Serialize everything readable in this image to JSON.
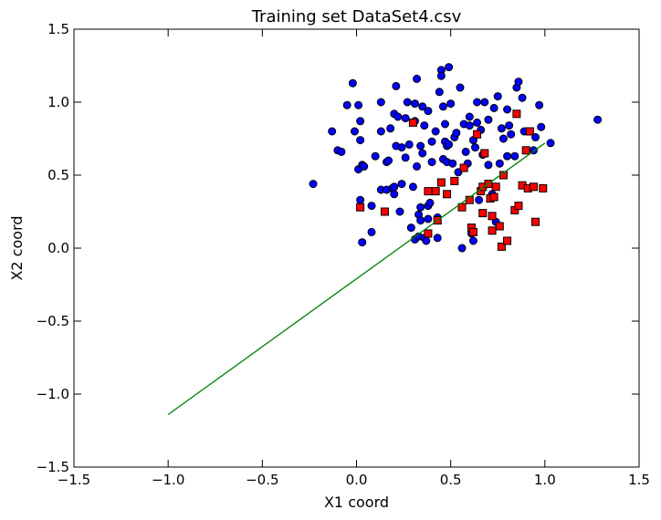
{
  "chart_data": {
    "type": "scatter",
    "title": "Training set DataSet4.csv",
    "xlabel": "X1 coord",
    "ylabel": "X2 coord",
    "xlim": [
      -1.5,
      1.5
    ],
    "ylim": [
      -1.5,
      1.5
    ],
    "xticks": [
      -1.5,
      -1.0,
      -0.5,
      0.0,
      0.5,
      1.0,
      1.5
    ],
    "yticks": [
      -1.5,
      -1.0,
      -0.5,
      0.0,
      0.5,
      1.0,
      1.5
    ],
    "xtick_labels": [
      "−1.5",
      "−1.0",
      "−0.5",
      "0.0",
      "0.5",
      "1.0",
      "1.5"
    ],
    "ytick_labels": [
      "−1.5",
      "−1.0",
      "−0.5",
      "0.0",
      "0.5",
      "1.0",
      "1.5"
    ],
    "grid": false,
    "series": [
      {
        "marker": "circle",
        "color": "#0000ff",
        "points": [
          [
            -0.23,
            0.44
          ],
          [
            -0.13,
            0.8
          ],
          [
            -0.1,
            0.67
          ],
          [
            -0.08,
            0.66
          ],
          [
            -0.05,
            0.98
          ],
          [
            -0.02,
            1.13
          ],
          [
            -0.01,
            0.8
          ],
          [
            0.01,
            0.98
          ],
          [
            0.02,
            0.87
          ],
          [
            0.02,
            0.74
          ],
          [
            0.01,
            0.54
          ],
          [
            0.03,
            0.57
          ],
          [
            0.04,
            0.56
          ],
          [
            0.02,
            0.33
          ],
          [
            0.03,
            0.04
          ],
          [
            0.08,
            0.11
          ],
          [
            0.08,
            0.29
          ],
          [
            0.1,
            0.63
          ],
          [
            0.13,
            0.4
          ],
          [
            0.13,
            0.8
          ],
          [
            0.13,
            1.0
          ],
          [
            0.16,
            0.4
          ],
          [
            0.16,
            0.59
          ],
          [
            0.17,
            0.6
          ],
          [
            0.18,
            0.82
          ],
          [
            0.19,
            0.41
          ],
          [
            0.2,
            0.37
          ],
          [
            0.2,
            0.42
          ],
          [
            0.2,
            0.92
          ],
          [
            0.21,
            0.7
          ],
          [
            0.22,
            0.9
          ],
          [
            0.21,
            1.11
          ],
          [
            0.23,
            0.25
          ],
          [
            0.24,
            0.44
          ],
          [
            0.24,
            0.69
          ],
          [
            0.26,
            0.89
          ],
          [
            0.26,
            0.62
          ],
          [
            0.27,
            1.0
          ],
          [
            0.28,
            0.71
          ],
          [
            0.29,
            0.14
          ],
          [
            0.3,
            0.42
          ],
          [
            0.31,
            0.06
          ],
          [
            0.31,
            0.87
          ],
          [
            0.32,
            1.16
          ],
          [
            0.31,
            0.99
          ],
          [
            0.32,
            0.56
          ],
          [
            0.33,
            0.23
          ],
          [
            0.33,
            0.08
          ],
          [
            0.34,
            0.19
          ],
          [
            0.34,
            0.28
          ],
          [
            0.34,
            0.7
          ],
          [
            0.35,
            0.97
          ],
          [
            0.35,
            0.65
          ],
          [
            0.36,
            0.84
          ],
          [
            0.36,
            0.07
          ],
          [
            0.37,
            0.05
          ],
          [
            0.38,
            0.94
          ],
          [
            0.38,
            0.2
          ],
          [
            0.38,
            0.29
          ],
          [
            0.39,
            0.31
          ],
          [
            0.4,
            0.73
          ],
          [
            0.4,
            0.59
          ],
          [
            0.42,
            0.8
          ],
          [
            0.43,
            0.21
          ],
          [
            0.43,
            0.07
          ],
          [
            0.44,
            1.07
          ],
          [
            0.45,
            1.22
          ],
          [
            0.45,
            1.18
          ],
          [
            0.46,
            0.61
          ],
          [
            0.46,
            0.97
          ],
          [
            0.47,
            0.73
          ],
          [
            0.47,
            0.85
          ],
          [
            0.48,
            0.59
          ],
          [
            0.48,
            0.7
          ],
          [
            0.49,
            1.24
          ],
          [
            0.49,
            0.71
          ],
          [
            0.5,
            0.99
          ],
          [
            0.51,
            0.58
          ],
          [
            0.52,
            0.76
          ],
          [
            0.53,
            0.79
          ],
          [
            0.54,
            0.52
          ],
          [
            0.55,
            1.1
          ],
          [
            0.56,
            0.0
          ],
          [
            0.57,
            0.85
          ],
          [
            0.58,
            0.66
          ],
          [
            0.59,
            0.58
          ],
          [
            0.6,
            0.9
          ],
          [
            0.6,
            0.84
          ],
          [
            0.61,
            0.1
          ],
          [
            0.62,
            0.05
          ],
          [
            0.62,
            0.74
          ],
          [
            0.63,
            0.69
          ],
          [
            0.64,
            0.86
          ],
          [
            0.64,
            1.0
          ],
          [
            0.65,
            0.33
          ],
          [
            0.66,
            0.81
          ],
          [
            0.67,
            0.64
          ],
          [
            0.68,
            1.0
          ],
          [
            0.7,
            0.88
          ],
          [
            0.7,
            0.57
          ],
          [
            0.72,
            0.37
          ],
          [
            0.73,
            0.96
          ],
          [
            0.74,
            0.18
          ],
          [
            0.75,
            1.04
          ],
          [
            0.76,
            0.58
          ],
          [
            0.77,
            0.82
          ],
          [
            0.78,
            0.75
          ],
          [
            0.8,
            0.63
          ],
          [
            0.8,
            0.95
          ],
          [
            0.81,
            0.84
          ],
          [
            0.82,
            0.78
          ],
          [
            0.84,
            0.63
          ],
          [
            0.85,
            1.1
          ],
          [
            0.86,
            1.14
          ],
          [
            0.88,
            1.03
          ],
          [
            0.89,
            0.8
          ],
          [
            0.92,
            0.8
          ],
          [
            0.94,
            0.67
          ],
          [
            0.95,
            0.76
          ],
          [
            0.97,
            0.98
          ],
          [
            0.98,
            0.83
          ],
          [
            1.03,
            0.72
          ],
          [
            1.28,
            0.88
          ]
        ]
      },
      {
        "marker": "square",
        "color": "#ff0000",
        "points": [
          [
            0.02,
            0.28
          ],
          [
            0.15,
            0.25
          ],
          [
            0.3,
            0.86
          ],
          [
            0.38,
            0.1
          ],
          [
            0.38,
            0.39
          ],
          [
            0.42,
            0.39
          ],
          [
            0.43,
            0.19
          ],
          [
            0.45,
            0.45
          ],
          [
            0.48,
            0.37
          ],
          [
            0.52,
            0.46
          ],
          [
            0.56,
            0.28
          ],
          [
            0.57,
            0.55
          ],
          [
            0.6,
            0.33
          ],
          [
            0.61,
            0.14
          ],
          [
            0.62,
            0.11
          ],
          [
            0.64,
            0.78
          ],
          [
            0.66,
            0.39
          ],
          [
            0.67,
            0.42
          ],
          [
            0.67,
            0.24
          ],
          [
            0.68,
            0.65
          ],
          [
            0.7,
            0.44
          ],
          [
            0.71,
            0.34
          ],
          [
            0.72,
            0.22
          ],
          [
            0.72,
            0.12
          ],
          [
            0.73,
            0.35
          ],
          [
            0.74,
            0.42
          ],
          [
            0.76,
            0.15
          ],
          [
            0.77,
            0.01
          ],
          [
            0.78,
            0.5
          ],
          [
            0.8,
            0.05
          ],
          [
            0.84,
            0.26
          ],
          [
            0.85,
            0.92
          ],
          [
            0.86,
            0.29
          ],
          [
            0.88,
            0.43
          ],
          [
            0.9,
            0.67
          ],
          [
            0.91,
            0.41
          ],
          [
            0.92,
            0.8
          ],
          [
            0.94,
            0.42
          ],
          [
            0.95,
            0.18
          ],
          [
            0.99,
            0.41
          ]
        ]
      }
    ],
    "line": {
      "x": [
        -1.0,
        1.0
      ],
      "y": [
        -1.14,
        0.72
      ],
      "color": "#008000"
    }
  }
}
